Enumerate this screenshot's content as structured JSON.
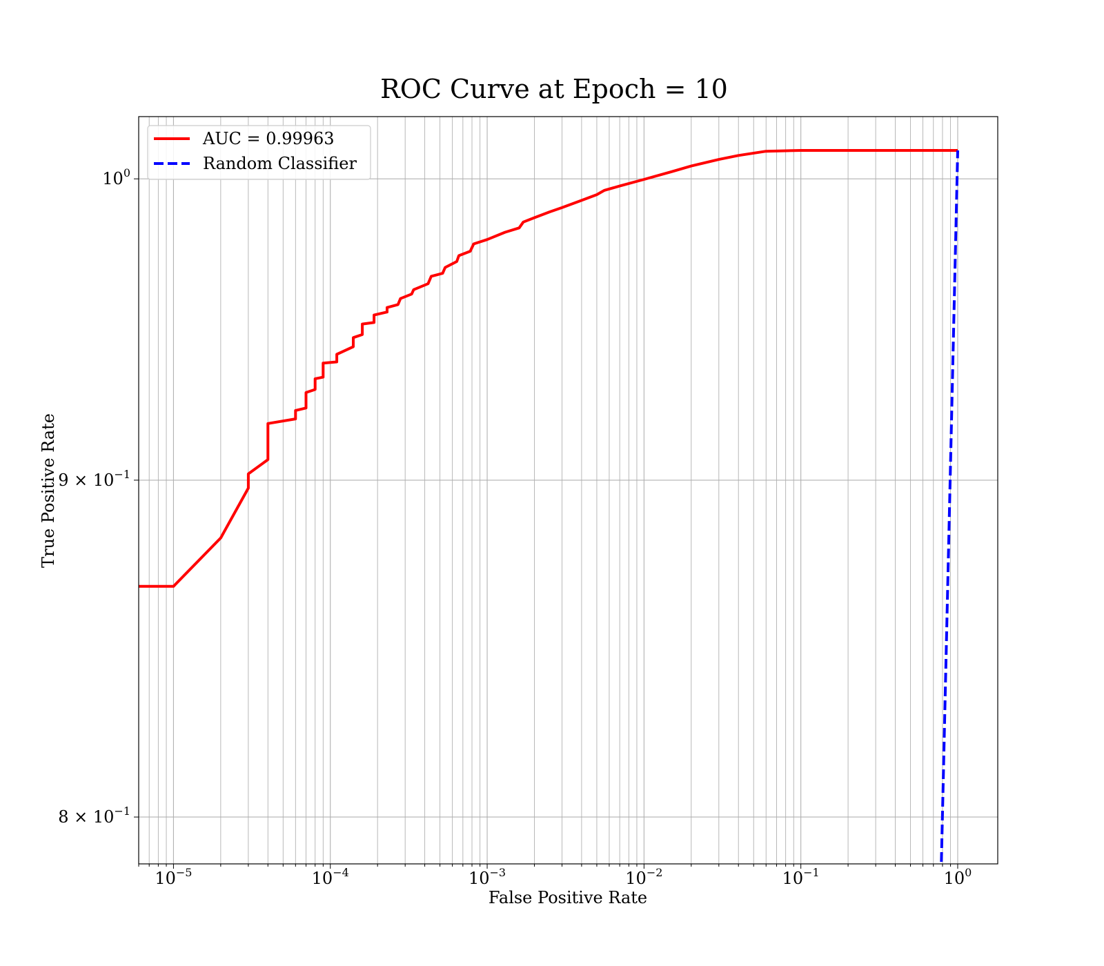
{
  "chart_data": {
    "type": "line",
    "title": "ROC Curve at Epoch = 10",
    "xlabel": "False Positive Rate",
    "ylabel": "True Positive Rate",
    "xscale": "log",
    "yscale": "log",
    "xlim": [
      6e-06,
      1.8
    ],
    "ylim": [
      0.787,
      1.022
    ],
    "grid": true,
    "legend_position": "top-left",
    "x_ticks": [
      {
        "value": 1e-05,
        "base": "10",
        "exp": "−5"
      },
      {
        "value": 0.0001,
        "base": "10",
        "exp": "−4"
      },
      {
        "value": 0.001,
        "base": "10",
        "exp": "−3"
      },
      {
        "value": 0.01,
        "base": "10",
        "exp": "−2"
      },
      {
        "value": 0.1,
        "base": "10",
        "exp": "−1"
      },
      {
        "value": 1,
        "base": "10",
        "exp": "0"
      }
    ],
    "y_ticks": [
      {
        "value": 1.0,
        "base": "10",
        "exp": "0"
      },
      {
        "value": 0.9,
        "base": "9 × 10",
        "exp": "−1"
      },
      {
        "value": 0.8,
        "base": "8 × 10",
        "exp": "−1"
      }
    ],
    "series": [
      {
        "name": "AUC = 0.99963",
        "color": "#ff0000",
        "style": "solid",
        "x": [
          6e-06,
          1e-05,
          2e-05,
          3e-05,
          3e-05,
          4e-05,
          4e-05,
          6e-05,
          6e-05,
          7e-05,
          7e-05,
          8e-05,
          8e-05,
          9e-05,
          9e-05,
          0.00011,
          0.00011,
          0.00014,
          0.00014,
          0.00016,
          0.00016,
          0.00019,
          0.00019,
          0.00023,
          0.00023,
          0.00027,
          0.00028,
          0.00033,
          0.00034,
          0.00042,
          0.00044,
          0.00052,
          0.00054,
          0.00064,
          0.00066,
          0.00078,
          0.00082,
          0.001,
          0.0013,
          0.0016,
          0.0017,
          0.002,
          0.0025,
          0.003,
          0.004,
          0.005,
          0.0056,
          0.007,
          0.01,
          0.015,
          0.02,
          0.03,
          0.04,
          0.06,
          0.1,
          0.2,
          1
        ],
        "y": [
          0.8672,
          0.8672,
          0.882,
          0.8975,
          0.902,
          0.9065,
          0.918,
          0.9195,
          0.9222,
          0.923,
          0.928,
          0.929,
          0.9325,
          0.933,
          0.9376,
          0.938,
          0.9405,
          0.943,
          0.946,
          0.947,
          0.9505,
          0.951,
          0.9535,
          0.9545,
          0.956,
          0.957,
          0.959,
          0.9605,
          0.962,
          0.964,
          0.9665,
          0.9675,
          0.9695,
          0.9715,
          0.9735,
          0.975,
          0.9775,
          0.979,
          0.9815,
          0.983,
          0.985,
          0.9865,
          0.9885,
          0.99,
          0.9925,
          0.9945,
          0.996,
          0.9975,
          0.9998,
          1.0025,
          1.0045,
          1.0068,
          1.0082,
          1.0097,
          1.01,
          1.01,
          1.01
        ]
      },
      {
        "name": "Random Classifier",
        "color": "#0000ff",
        "style": "dashed",
        "x": [
          0.78,
          1
        ],
        "y": [
          0.78,
          1.01
        ]
      }
    ]
  }
}
